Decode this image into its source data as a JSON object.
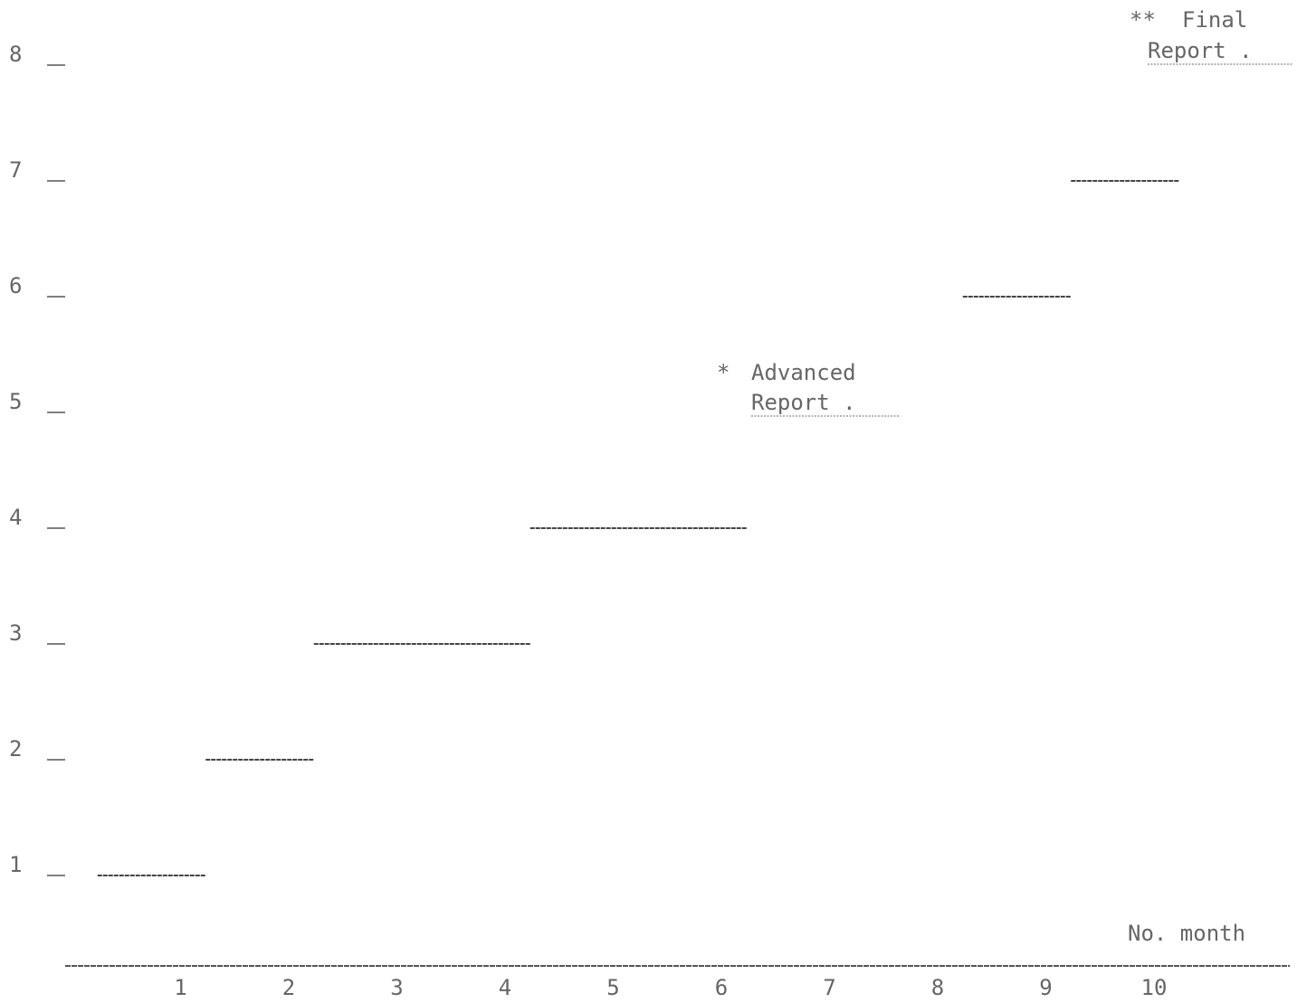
{
  "chart_data": {
    "type": "bar",
    "x": [
      1,
      2,
      3,
      4,
      5,
      6,
      7,
      8,
      9,
      10
    ],
    "x_tick_labels": [
      "1",
      "2",
      "3",
      "4",
      "5",
      "6",
      "7",
      "8",
      "9",
      "10"
    ],
    "y_tick_labels": [
      "1",
      "2",
      "3",
      "4",
      "5",
      "6",
      "7",
      "8"
    ],
    "xlabel": "No. month",
    "ylabel": "",
    "title": "",
    "ylim": [
      0,
      8
    ],
    "segments": [
      {
        "x_start": 0.5,
        "x_end": 1.5,
        "value": 1
      },
      {
        "x_start": 1.5,
        "x_end": 2.5,
        "value": 2
      },
      {
        "x_start": 2.5,
        "x_end": 4.5,
        "value": 3
      },
      {
        "x_start": 4.5,
        "x_end": 6.5,
        "value": 4
      },
      {
        "x_start": 8.5,
        "x_end": 9.5,
        "value": 6
      },
      {
        "x_start": 9.5,
        "x_end": 10.5,
        "value": 7
      }
    ],
    "grid": false,
    "annotations": [
      {
        "marker": "*",
        "line1": "Advanced",
        "line2": "Report ."
      },
      {
        "marker": "**",
        "line1": "Final",
        "line2": "Report ."
      }
    ]
  },
  "colors": {
    "ink": "#444444",
    "text": "#666666",
    "background": "#ffffff"
  }
}
